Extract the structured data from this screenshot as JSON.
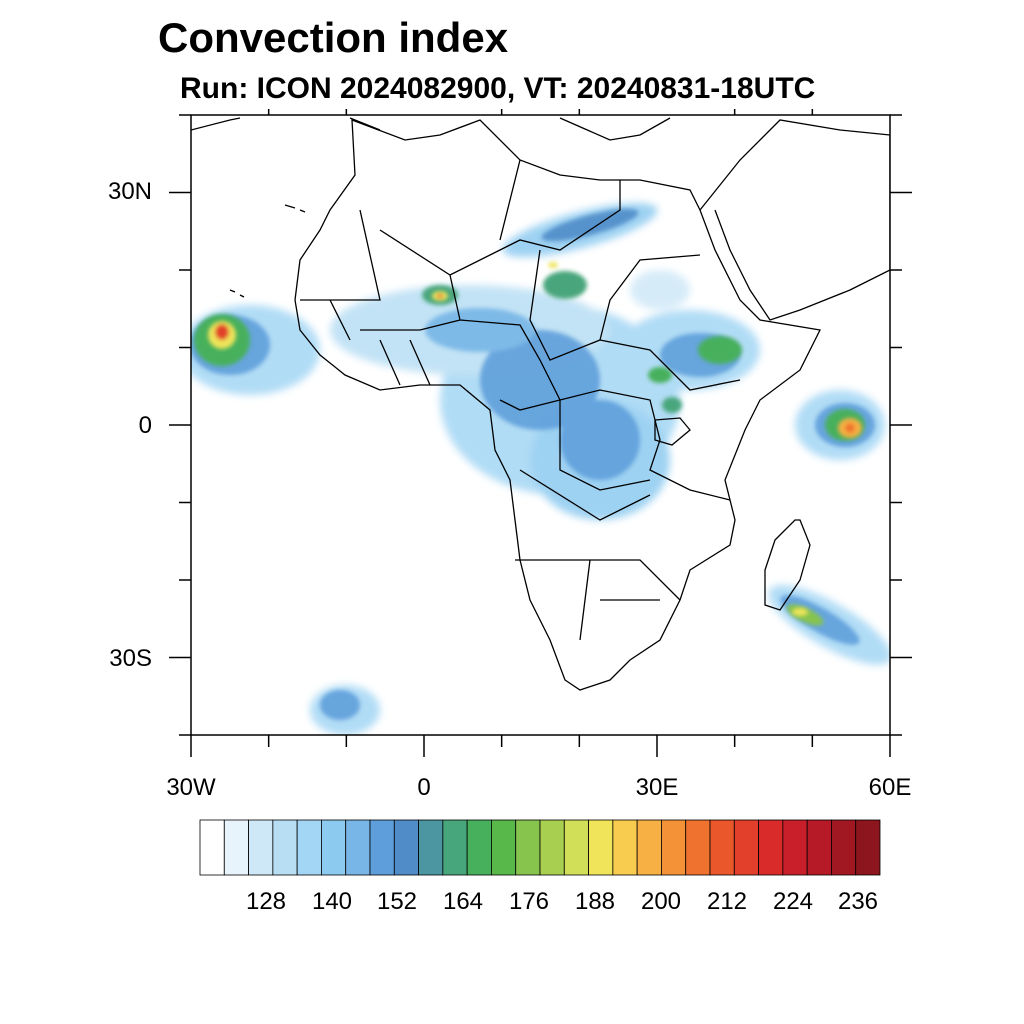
{
  "title": "Convection index",
  "subtitle": "Run: ICON 2024082900,  VT: 20240831-18UTC",
  "axes": {
    "lat_labels": [
      "30N",
      "0",
      "30S"
    ],
    "lon_labels": [
      "30W",
      "0",
      "30E",
      "60E"
    ],
    "lat_values": [
      30,
      0,
      -30
    ],
    "lon_values": [
      -30,
      0,
      30,
      60
    ],
    "lat_range": [
      -40,
      40
    ],
    "lon_range": [
      -30,
      60
    ]
  },
  "colorbar": {
    "labels": [
      "128",
      "140",
      "152",
      "164",
      "176",
      "188",
      "200",
      "212",
      "224",
      "236"
    ],
    "colors": [
      "#ffffff",
      "#e8f4fb",
      "#cfe8f7",
      "#b8def4",
      "#a3d6f4",
      "#8dcaf0",
      "#77b6e6",
      "#5e9fdb",
      "#4f8cc8",
      "#4b96a0",
      "#48a67c",
      "#46b05c",
      "#58b84a",
      "#86c44e",
      "#a8cf50",
      "#d0de58",
      "#efe45a",
      "#f8cc4e",
      "#f6b043",
      "#f49238",
      "#ef722f",
      "#e9572a",
      "#e2402a",
      "#da2b2b",
      "#c91f2a",
      "#b51a26",
      "#a11722",
      "#8c151e"
    ]
  }
}
